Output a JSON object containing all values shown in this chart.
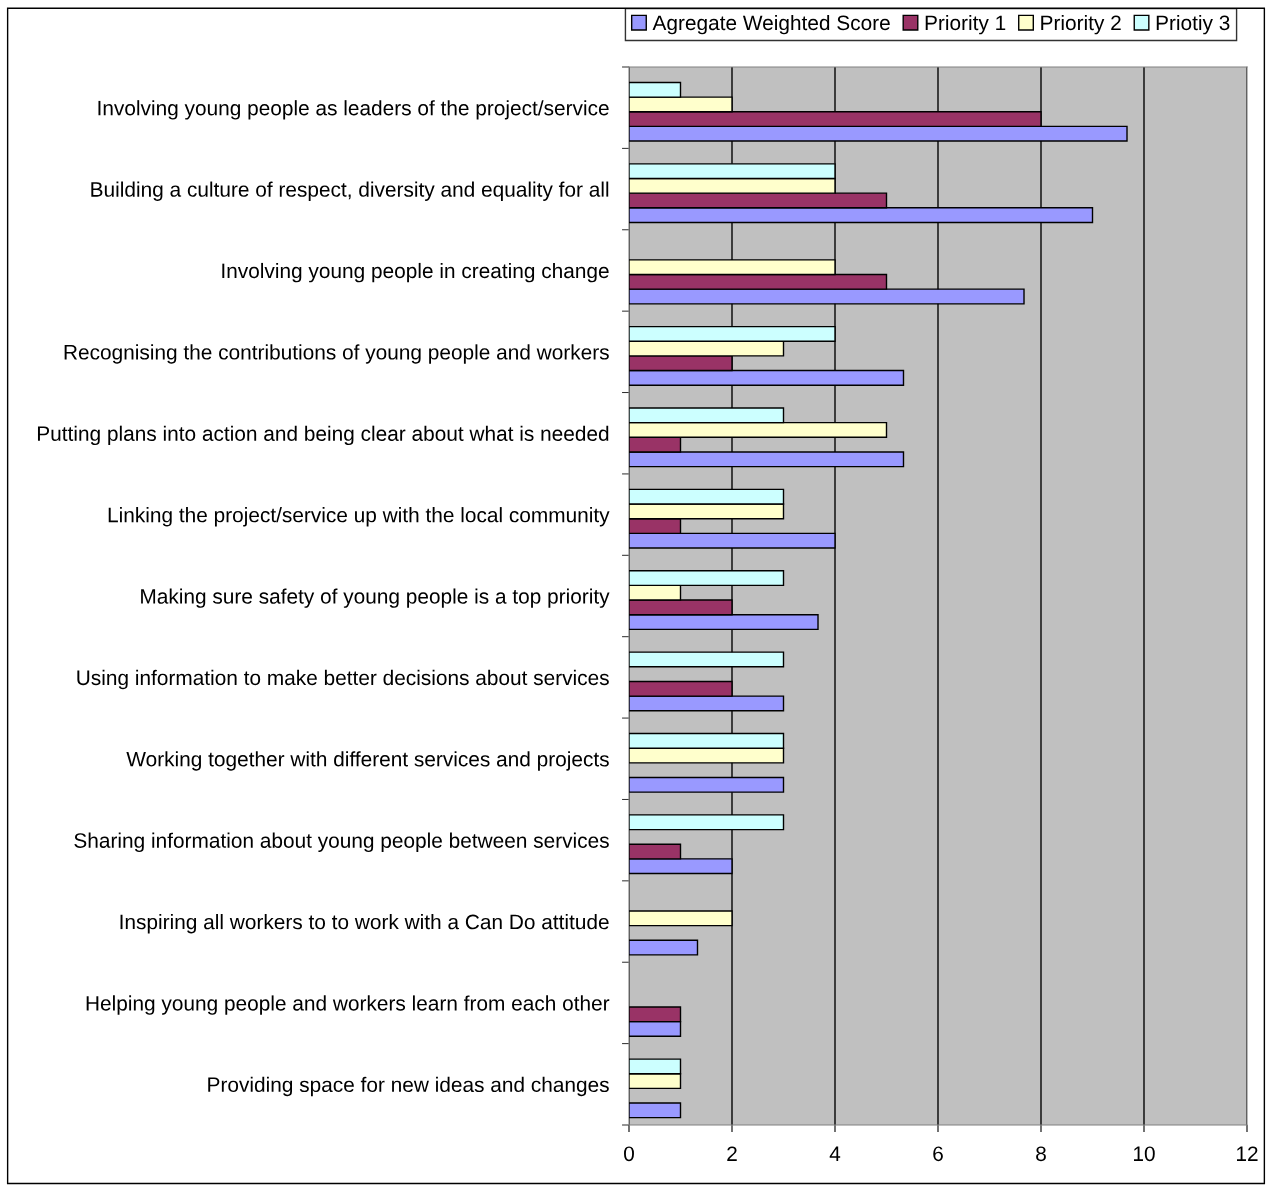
{
  "chart_data": {
    "type": "bar",
    "orientation": "horizontal",
    "categories": [
      "Involving young people as leaders of the project/service",
      "Building a culture of respect, diversity and equality for all",
      "Involving young people in creating change",
      "Recognising the contributions of young people and workers",
      "Putting plans into action and being clear about what is needed",
      "Linking the project/service up with the local community",
      "Making sure safety of young people is a top priority",
      "Using information to make better decisions about services",
      "Working together with different services and projects",
      "Sharing information about young people between services",
      "Inspiring all workers to to work with a Can Do attitude",
      "Helping young people and workers learn from each other",
      "Providing space for new ideas and changes"
    ],
    "series": [
      {
        "name": "Agregate Weighted Score",
        "color": "#9999ff",
        "values": [
          9.67,
          9,
          7.67,
          5.33,
          5.33,
          4,
          3.67,
          3,
          3,
          2,
          1.33,
          1,
          1
        ]
      },
      {
        "name": "Priority 1",
        "color": "#993366",
        "values": [
          8,
          5,
          5,
          2,
          1,
          1,
          2,
          2,
          null,
          1,
          null,
          1,
          null
        ]
      },
      {
        "name": "Priority 2",
        "color": "#ffffcc",
        "values": [
          2,
          4,
          4,
          3,
          5,
          3,
          1,
          null,
          3,
          null,
          2,
          null,
          1
        ]
      },
      {
        "name": "Priotiy 3",
        "color": "#ccffff",
        "values": [
          1,
          4,
          null,
          4,
          3,
          3,
          3,
          3,
          3,
          3,
          null,
          null,
          1
        ]
      }
    ],
    "xlim": [
      0,
      12
    ],
    "xticks": [
      0,
      2,
      4,
      6,
      8,
      10,
      12
    ],
    "grid": "x",
    "legend": "top right"
  }
}
